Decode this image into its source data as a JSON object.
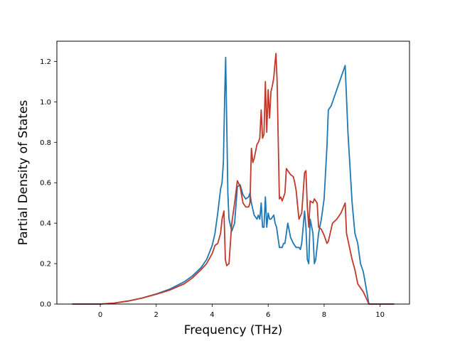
{
  "chart_data": {
    "type": "line",
    "title": "",
    "xlabel": "Frequency (THz)",
    "ylabel": "Partial Density of States",
    "xlim": [
      -1.55,
      11.05
    ],
    "ylim": [
      0.0,
      1.3
    ],
    "xticks": [
      0,
      2,
      4,
      6,
      8,
      10
    ],
    "xtick_labels": [
      "0",
      "2",
      "4",
      "6",
      "8",
      "10"
    ],
    "yticks": [
      0.0,
      0.2,
      0.4,
      0.6,
      0.8,
      1.0,
      1.2
    ],
    "ytick_labels": [
      "0.0",
      "0.2",
      "0.4",
      "0.6",
      "0.8",
      "1.0",
      "1.2"
    ],
    "grid": false,
    "legend": "none",
    "series": [
      {
        "color": "#1f77b4",
        "points": [
          [
            -1.0,
            0.0
          ],
          [
            0.0,
            0.0
          ],
          [
            0.5,
            0.005
          ],
          [
            1.0,
            0.015
          ],
          [
            1.5,
            0.03
          ],
          [
            2.0,
            0.05
          ],
          [
            2.5,
            0.075
          ],
          [
            3.0,
            0.11
          ],
          [
            3.3,
            0.14
          ],
          [
            3.6,
            0.18
          ],
          [
            3.8,
            0.22
          ],
          [
            4.0,
            0.29
          ],
          [
            4.1,
            0.35
          ],
          [
            4.2,
            0.45
          ],
          [
            4.3,
            0.57
          ],
          [
            4.35,
            0.6
          ],
          [
            4.4,
            0.7
          ],
          [
            4.45,
            1.05
          ],
          [
            4.48,
            1.22
          ],
          [
            4.52,
            0.9
          ],
          [
            4.56,
            0.55
          ],
          [
            4.6,
            0.42
          ],
          [
            4.7,
            0.36
          ],
          [
            4.8,
            0.4
          ],
          [
            4.9,
            0.58
          ],
          [
            5.0,
            0.59
          ],
          [
            5.1,
            0.54
          ],
          [
            5.2,
            0.52
          ],
          [
            5.3,
            0.53
          ],
          [
            5.35,
            0.55
          ],
          [
            5.4,
            0.5
          ],
          [
            5.5,
            0.44
          ],
          [
            5.6,
            0.42
          ],
          [
            5.65,
            0.44
          ],
          [
            5.7,
            0.42
          ],
          [
            5.75,
            0.5
          ],
          [
            5.8,
            0.38
          ],
          [
            5.85,
            0.38
          ],
          [
            5.9,
            0.53
          ],
          [
            5.95,
            0.38
          ],
          [
            6.0,
            0.45
          ],
          [
            6.05,
            0.42
          ],
          [
            6.1,
            0.42
          ],
          [
            6.2,
            0.44
          ],
          [
            6.25,
            0.4
          ],
          [
            6.3,
            0.38
          ],
          [
            6.4,
            0.28
          ],
          [
            6.5,
            0.28
          ],
          [
            6.55,
            0.3
          ],
          [
            6.6,
            0.3
          ],
          [
            6.7,
            0.4
          ],
          [
            6.8,
            0.33
          ],
          [
            6.9,
            0.3
          ],
          [
            7.0,
            0.28
          ],
          [
            7.1,
            0.28
          ],
          [
            7.15,
            0.27
          ],
          [
            7.2,
            0.3
          ],
          [
            7.3,
            0.46
          ],
          [
            7.35,
            0.38
          ],
          [
            7.4,
            0.22
          ],
          [
            7.45,
            0.2
          ],
          [
            7.5,
            0.42
          ],
          [
            7.6,
            0.35
          ],
          [
            7.65,
            0.2
          ],
          [
            7.7,
            0.22
          ],
          [
            7.8,
            0.35
          ],
          [
            7.9,
            0.42
          ],
          [
            8.0,
            0.52
          ],
          [
            8.1,
            0.78
          ],
          [
            8.15,
            0.96
          ],
          [
            8.25,
            0.98
          ],
          [
            8.4,
            1.04
          ],
          [
            8.6,
            1.12
          ],
          [
            8.75,
            1.18
          ],
          [
            8.85,
            0.85
          ],
          [
            9.0,
            0.5
          ],
          [
            9.1,
            0.35
          ],
          [
            9.2,
            0.3
          ],
          [
            9.3,
            0.2
          ],
          [
            9.4,
            0.16
          ],
          [
            9.5,
            0.08
          ],
          [
            9.6,
            0.0
          ],
          [
            10.5,
            0.0
          ]
        ]
      },
      {
        "color": "#c0392b",
        "points": [
          [
            -1.0,
            0.0
          ],
          [
            0.0,
            0.0
          ],
          [
            0.5,
            0.005
          ],
          [
            1.0,
            0.015
          ],
          [
            1.5,
            0.03
          ],
          [
            2.0,
            0.048
          ],
          [
            2.5,
            0.07
          ],
          [
            3.0,
            0.1
          ],
          [
            3.3,
            0.13
          ],
          [
            3.6,
            0.17
          ],
          [
            3.8,
            0.2
          ],
          [
            4.0,
            0.25
          ],
          [
            4.1,
            0.29
          ],
          [
            4.2,
            0.3
          ],
          [
            4.3,
            0.35
          ],
          [
            4.35,
            0.42
          ],
          [
            4.42,
            0.46
          ],
          [
            4.47,
            0.22
          ],
          [
            4.52,
            0.19
          ],
          [
            4.6,
            0.2
          ],
          [
            4.7,
            0.4
          ],
          [
            4.8,
            0.5
          ],
          [
            4.9,
            0.61
          ],
          [
            5.0,
            0.58
          ],
          [
            5.1,
            0.5
          ],
          [
            5.2,
            0.48
          ],
          [
            5.3,
            0.48
          ],
          [
            5.35,
            0.5
          ],
          [
            5.4,
            0.77
          ],
          [
            5.45,
            0.7
          ],
          [
            5.5,
            0.72
          ],
          [
            5.6,
            0.79
          ],
          [
            5.65,
            0.8
          ],
          [
            5.7,
            0.82
          ],
          [
            5.75,
            0.96
          ],
          [
            5.8,
            0.82
          ],
          [
            5.85,
            0.84
          ],
          [
            5.9,
            1.1
          ],
          [
            5.95,
            0.85
          ],
          [
            6.0,
            1.06
          ],
          [
            6.05,
            0.92
          ],
          [
            6.1,
            1.05
          ],
          [
            6.15,
            1.08
          ],
          [
            6.2,
            1.12
          ],
          [
            6.25,
            1.2
          ],
          [
            6.28,
            1.24
          ],
          [
            6.32,
            1.1
          ],
          [
            6.36,
            0.8
          ],
          [
            6.4,
            0.52
          ],
          [
            6.45,
            0.53
          ],
          [
            6.5,
            0.51
          ],
          [
            6.55,
            0.53
          ],
          [
            6.6,
            0.55
          ],
          [
            6.65,
            0.67
          ],
          [
            6.7,
            0.66
          ],
          [
            6.8,
            0.64
          ],
          [
            6.9,
            0.63
          ],
          [
            6.95,
            0.6
          ],
          [
            7.0,
            0.56
          ],
          [
            7.1,
            0.42
          ],
          [
            7.2,
            0.45
          ],
          [
            7.25,
            0.55
          ],
          [
            7.3,
            0.65
          ],
          [
            7.35,
            0.66
          ],
          [
            7.4,
            0.48
          ],
          [
            7.45,
            0.38
          ],
          [
            7.5,
            0.51
          ],
          [
            7.6,
            0.5
          ],
          [
            7.65,
            0.52
          ],
          [
            7.75,
            0.5
          ],
          [
            7.8,
            0.38
          ],
          [
            7.9,
            0.37
          ],
          [
            8.0,
            0.34
          ],
          [
            8.1,
            0.3
          ],
          [
            8.15,
            0.31
          ],
          [
            8.2,
            0.34
          ],
          [
            8.3,
            0.4
          ],
          [
            8.45,
            0.42
          ],
          [
            8.6,
            0.45
          ],
          [
            8.75,
            0.5
          ],
          [
            8.8,
            0.35
          ],
          [
            9.0,
            0.22
          ],
          [
            9.1,
            0.17
          ],
          [
            9.2,
            0.1
          ],
          [
            9.3,
            0.08
          ],
          [
            9.4,
            0.06
          ],
          [
            9.5,
            0.03
          ],
          [
            9.6,
            0.0
          ],
          [
            10.5,
            0.0
          ]
        ]
      }
    ]
  }
}
